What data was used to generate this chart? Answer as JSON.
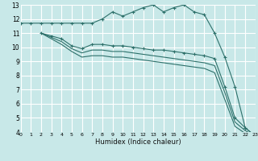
{
  "xlabel": "Humidex (Indice chaleur)",
  "bg_color": "#c8e8e8",
  "grid_color": "#ffffff",
  "line_color": "#2d706a",
  "xlim": [
    0,
    23
  ],
  "ylim": [
    4,
    13
  ],
  "xticks": [
    0,
    1,
    2,
    3,
    4,
    5,
    6,
    7,
    8,
    9,
    10,
    11,
    12,
    13,
    14,
    15,
    16,
    17,
    18,
    19,
    20,
    21,
    22,
    23
  ],
  "yticks": [
    4,
    5,
    6,
    7,
    8,
    9,
    10,
    11,
    12,
    13
  ],
  "series": [
    {
      "x": [
        0,
        1,
        2,
        3,
        4,
        5,
        6,
        7,
        8,
        9,
        10,
        11,
        12,
        13,
        14,
        15,
        16,
        17,
        18,
        19,
        20,
        21,
        22,
        23
      ],
      "y": [
        11.7,
        11.7,
        11.7,
        11.7,
        11.7,
        11.7,
        11.7,
        11.7,
        12.0,
        12.5,
        12.2,
        12.5,
        12.8,
        13.0,
        12.5,
        12.8,
        13.0,
        12.5,
        12.3,
        11.0,
        9.3,
        7.2,
        4.3,
        3.7
      ],
      "has_markers": true
    },
    {
      "x": [
        2,
        3,
        4,
        5,
        6,
        7,
        8,
        9,
        10,
        11,
        12,
        13,
        14,
        15,
        16,
        17,
        18,
        19,
        20,
        21,
        22,
        23
      ],
      "y": [
        11.0,
        10.8,
        10.6,
        10.1,
        9.9,
        10.2,
        10.2,
        10.1,
        10.1,
        10.0,
        9.9,
        9.8,
        9.8,
        9.7,
        9.6,
        9.5,
        9.4,
        9.2,
        7.2,
        5.0,
        4.3,
        3.7
      ],
      "has_markers": true
    },
    {
      "x": [
        2,
        3,
        4,
        5,
        6,
        7,
        8,
        9,
        10,
        11,
        12,
        13,
        14,
        15,
        16,
        17,
        18,
        19,
        20,
        21,
        22,
        23
      ],
      "y": [
        11.0,
        10.7,
        10.4,
        9.9,
        9.6,
        9.8,
        9.8,
        9.7,
        9.7,
        9.6,
        9.5,
        9.4,
        9.3,
        9.2,
        9.1,
        9.0,
        8.9,
        8.7,
        6.8,
        4.7,
        4.1,
        3.7
      ],
      "has_markers": false
    },
    {
      "x": [
        2,
        3,
        4,
        5,
        6,
        7,
        8,
        9,
        10,
        11,
        12,
        13,
        14,
        15,
        16,
        17,
        18,
        19,
        20,
        21,
        22,
        23
      ],
      "y": [
        11.0,
        10.6,
        10.2,
        9.7,
        9.3,
        9.4,
        9.4,
        9.3,
        9.3,
        9.2,
        9.1,
        9.0,
        8.9,
        8.8,
        8.7,
        8.6,
        8.5,
        8.2,
        6.3,
        4.4,
        3.9,
        3.7
      ],
      "has_markers": false
    }
  ]
}
